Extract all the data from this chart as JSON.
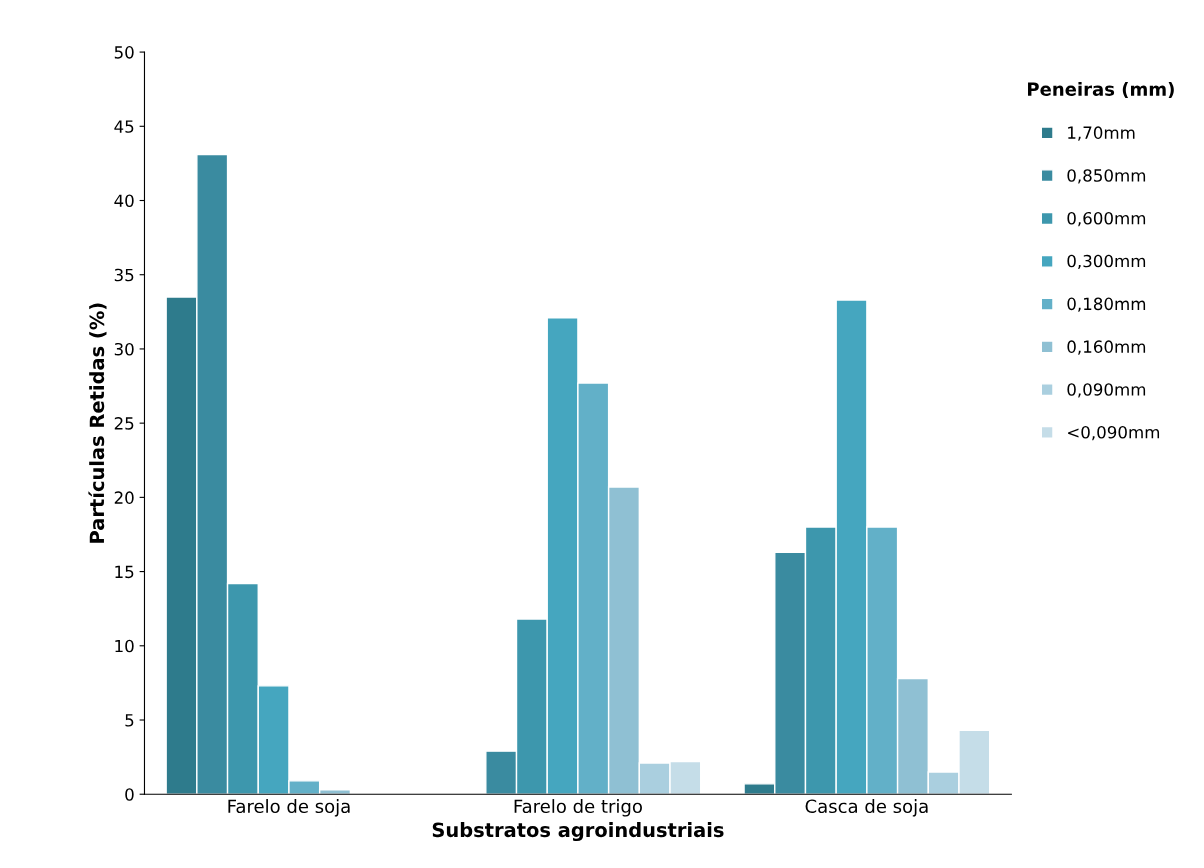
{
  "chart_data": {
    "type": "bar",
    "xlabel": "Substratos agroindustriais",
    "ylabel": "Partículas Retidas (%)",
    "legend_title": "Peneiras (mm)",
    "categories": [
      "Farelo de soja",
      "Farelo de trigo",
      "Casca de soja"
    ],
    "series": [
      {
        "name": "1,70mm",
        "color": "#2e7b8c",
        "values": [
          33.5,
          null,
          0.7
        ]
      },
      {
        "name": "0,850mm",
        "color": "#3a8ba0",
        "values": [
          43.1,
          2.9,
          16.3
        ]
      },
      {
        "name": "0,600mm",
        "color": "#3d97ad",
        "values": [
          14.2,
          11.8,
          18.0
        ]
      },
      {
        "name": "0,300mm",
        "color": "#45a6bf",
        "values": [
          7.3,
          32.1,
          33.3
        ]
      },
      {
        "name": "0,180mm",
        "color": "#62b0c8",
        "values": [
          0.9,
          27.7,
          18.0
        ]
      },
      {
        "name": "0,160mm",
        "color": "#8fc0d3",
        "values": [
          0.3,
          20.7,
          7.8
        ]
      },
      {
        "name": "0,090mm",
        "color": "#aacfdf",
        "values": [
          null,
          2.1,
          1.5
        ]
      },
      {
        "name": "<0,090mm",
        "color": "#c5dde8",
        "values": [
          null,
          2.2,
          4.3
        ]
      }
    ],
    "ylim": [
      0,
      50
    ],
    "yticks": [
      0,
      5,
      10,
      15,
      20,
      25,
      30,
      35,
      40,
      45,
      50
    ],
    "grid": false,
    "legend": "right"
  }
}
